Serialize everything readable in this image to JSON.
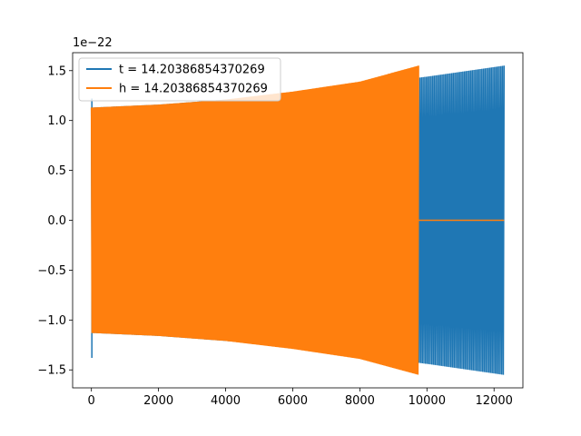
{
  "chart_data": {
    "type": "line",
    "title": "",
    "xlabel": "",
    "ylabel": "",
    "y_offset_text": "1e−22",
    "xlim": [
      -560,
      12860
    ],
    "ylim": [
      -1.68,
      1.68
    ],
    "x_ticks": [
      0,
      2000,
      4000,
      6000,
      8000,
      10000,
      12000
    ],
    "x_tick_labels": [
      "0",
      "2000",
      "4000",
      "6000",
      "8000",
      "10000",
      "12000"
    ],
    "y_ticks": [
      -1.5,
      -1.0,
      -0.5,
      0.0,
      0.5,
      1.0,
      1.5
    ],
    "y_tick_labels": [
      "−1.5",
      "−1.0",
      "−0.5",
      "0.0",
      "0.5",
      "1.0",
      "1.5"
    ],
    "grid": false,
    "legend_position": "upper-left",
    "series": [
      {
        "name": "t = 14.20386854370269",
        "color": "#1f77b4",
        "x_range": [
          0,
          12300
        ],
        "envelope_x": [
          0,
          2000,
          4000,
          6000,
          8000,
          10000,
          12300
        ],
        "envelope_upper": [
          1.13,
          1.16,
          1.21,
          1.27,
          1.35,
          1.44,
          1.55
        ],
        "envelope_lower": [
          -1.13,
          -1.16,
          -1.21,
          -1.27,
          -1.35,
          -1.44,
          -1.55
        ],
        "initial_spike": {
          "x": 0,
          "ymax": 1.22,
          "ymin": -1.38
        }
      },
      {
        "name": "h = 14.20386854370269",
        "color": "#ff7f0e",
        "x_range": [
          0,
          9750
        ],
        "envelope_x": [
          0,
          2000,
          4000,
          6000,
          8000,
          9750
        ],
        "envelope_upper": [
          1.13,
          1.16,
          1.21,
          1.29,
          1.39,
          1.55
        ],
        "envelope_lower": [
          -1.13,
          -1.16,
          -1.21,
          -1.29,
          -1.39,
          -1.55
        ],
        "tail_x": [
          9750,
          12300
        ],
        "tail_value": 0.0
      }
    ]
  }
}
